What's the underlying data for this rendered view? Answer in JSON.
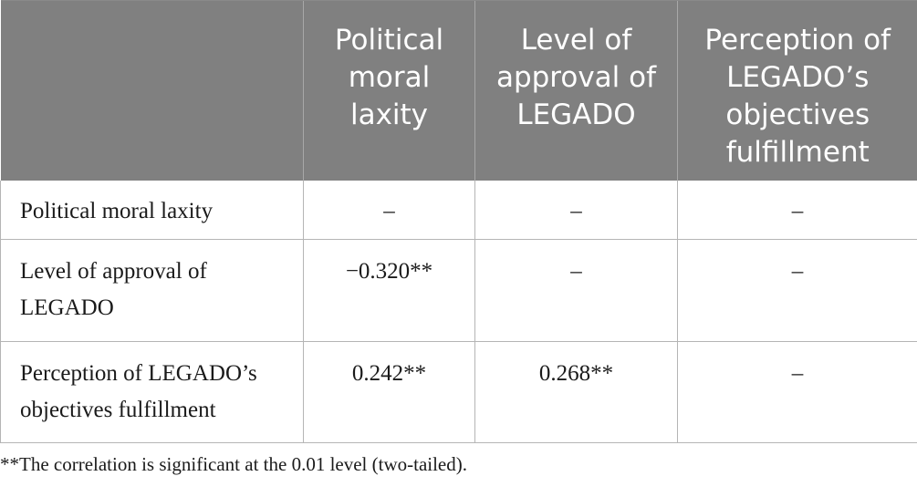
{
  "table": {
    "columns": [
      "",
      "Political moral laxity",
      "Level of approval of LEGADO",
      "Perception of LEGADO’s objectives fulfillment"
    ],
    "rows": [
      {
        "label": "Political moral laxity",
        "cells": [
          "–",
          "–",
          "–"
        ]
      },
      {
        "label": "Level of approval of LEGADO",
        "cells": [
          "−0.320**",
          "–",
          "–"
        ]
      },
      {
        "label": "Perception of LEGADO’s objectives fulfillment",
        "cells": [
          "0.242**",
          "0.268**",
          "–"
        ]
      }
    ]
  },
  "footnote": "**The correlation is significant at the 0.01 level (two-tailed)."
}
